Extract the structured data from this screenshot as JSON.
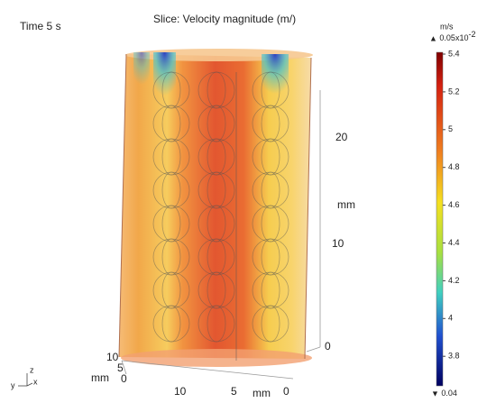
{
  "header": {
    "time": "Time 5 s",
    "title": "Slice: Velocity magnitude (m/)"
  },
  "colorbar": {
    "unit": "m/s",
    "max": "0.05x10",
    "exponent": "-2",
    "ticks": [
      "5.4",
      "5.2",
      "5",
      "4.8",
      "4.6",
      "4.4",
      "4.2",
      "4",
      "3.8"
    ],
    "min": "0.04"
  },
  "axes": {
    "z": {
      "ticks": [
        "20",
        "10",
        "0"
      ],
      "unit": "mm"
    },
    "x": {
      "ticks": [
        "10",
        "5",
        "0"
      ],
      "unit": "mm"
    },
    "y": {
      "ticks": [
        "10",
        "5",
        "0"
      ],
      "unit": "mm"
    },
    "triad": {
      "y": "y",
      "z": "z",
      "x": "x"
    }
  }
}
